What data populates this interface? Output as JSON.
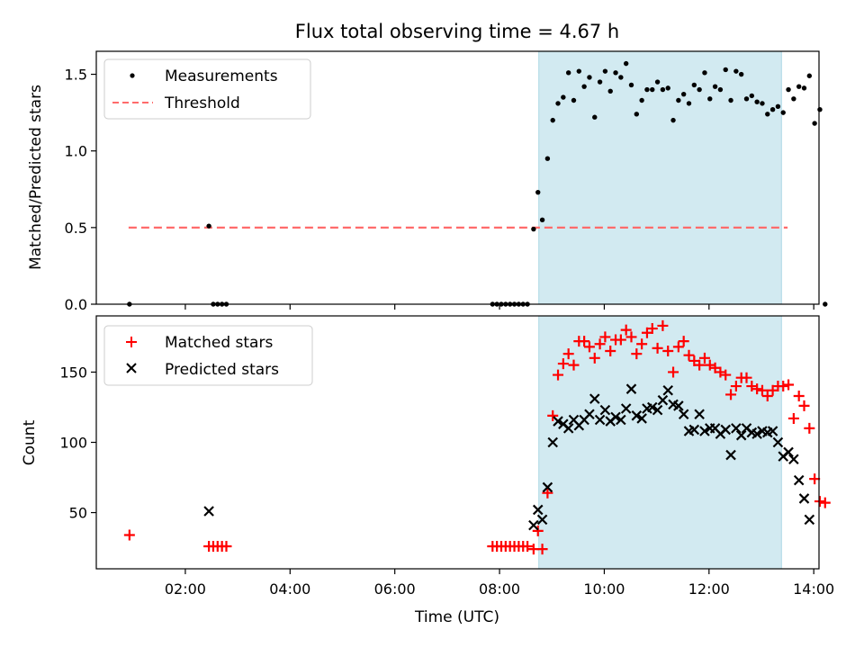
{
  "title": "Flux total observing time = 4.67 h",
  "colors": {
    "observing_band": "#add8e6",
    "threshold": "#ff6b6b",
    "matched": "#ff0000",
    "predicted": "#000000",
    "measurements": "#000000"
  },
  "chart_data": [
    {
      "type": "scatter",
      "ylabel": "Matched/Predicted stars",
      "xlabel": "",
      "x_unit": "hours UTC",
      "xlim": [
        0.3,
        14.1
      ],
      "ylim": [
        0,
        1.65
      ],
      "y_ticks": [
        "0.0",
        "0.5",
        "1.0",
        "1.5"
      ],
      "legend": {
        "position": "top-left",
        "entries": [
          "Measurements",
          "Threshold"
        ]
      },
      "observing_window": [
        "08:45",
        "13:23"
      ],
      "threshold": {
        "value": 0.5,
        "x_range": [
          "00:55",
          "13:30"
        ]
      },
      "series": [
        {
          "name": "Measurements",
          "marker": "dot",
          "points": [
            [
              "00:56",
              0.0
            ],
            [
              "02:27",
              0.51
            ],
            [
              "02:32",
              0.0
            ],
            [
              "02:37",
              0.0
            ],
            [
              "02:42",
              0.0
            ],
            [
              "02:47",
              0.0
            ],
            [
              "07:52",
              0.0
            ],
            [
              "07:57",
              0.0
            ],
            [
              "08:02",
              0.0
            ],
            [
              "08:07",
              0.0
            ],
            [
              "08:12",
              0.0
            ],
            [
              "08:17",
              0.0
            ],
            [
              "08:22",
              0.0
            ],
            [
              "08:27",
              0.0
            ],
            [
              "08:32",
              0.0
            ],
            [
              "08:39",
              0.49
            ],
            [
              "08:44",
              0.73
            ],
            [
              "08:49",
              0.55
            ],
            [
              "08:55",
              0.95
            ],
            [
              "09:01",
              1.2
            ],
            [
              "09:07",
              1.31
            ],
            [
              "09:13",
              1.35
            ],
            [
              "09:19",
              1.51
            ],
            [
              "09:25",
              1.33
            ],
            [
              "09:31",
              1.52
            ],
            [
              "09:37",
              1.42
            ],
            [
              "09:43",
              1.48
            ],
            [
              "09:49",
              1.22
            ],
            [
              "09:55",
              1.45
            ],
            [
              "10:01",
              1.52
            ],
            [
              "10:07",
              1.39
            ],
            [
              "10:13",
              1.51
            ],
            [
              "10:19",
              1.48
            ],
            [
              "10:25",
              1.57
            ],
            [
              "10:31",
              1.43
            ],
            [
              "10:37",
              1.24
            ],
            [
              "10:43",
              1.33
            ],
            [
              "10:49",
              1.4
            ],
            [
              "10:55",
              1.4
            ],
            [
              "11:01",
              1.45
            ],
            [
              "11:07",
              1.4
            ],
            [
              "11:13",
              1.41
            ],
            [
              "11:19",
              1.2
            ],
            [
              "11:25",
              1.33
            ],
            [
              "11:31",
              1.37
            ],
            [
              "11:37",
              1.31
            ],
            [
              "11:43",
              1.43
            ],
            [
              "11:49",
              1.4
            ],
            [
              "11:55",
              1.51
            ],
            [
              "12:01",
              1.34
            ],
            [
              "12:07",
              1.42
            ],
            [
              "12:13",
              1.4
            ],
            [
              "12:19",
              1.53
            ],
            [
              "12:25",
              1.33
            ],
            [
              "12:31",
              1.52
            ],
            [
              "12:37",
              1.5
            ],
            [
              "12:43",
              1.34
            ],
            [
              "12:49",
              1.36
            ],
            [
              "12:55",
              1.32
            ],
            [
              "13:01",
              1.31
            ],
            [
              "13:07",
              1.24
            ],
            [
              "13:13",
              1.27
            ],
            [
              "13:19",
              1.29
            ],
            [
              "13:25",
              1.25
            ],
            [
              "13:31",
              1.4
            ],
            [
              "13:37",
              1.34
            ],
            [
              "13:43",
              1.42
            ],
            [
              "13:49",
              1.41
            ],
            [
              "13:55",
              1.49
            ],
            [
              "14:01",
              1.18
            ],
            [
              "14:07",
              1.27
            ],
            [
              "14:13",
              0.0
            ]
          ]
        }
      ]
    },
    {
      "type": "scatter",
      "ylabel": "Count",
      "xlabel": "Time (UTC)",
      "x_unit": "hours UTC",
      "xlim": [
        0.3,
        14.1
      ],
      "ylim": [
        10,
        190
      ],
      "x_ticks": [
        "02:00",
        "04:00",
        "06:00",
        "08:00",
        "10:00",
        "12:00",
        "14:00"
      ],
      "y_ticks": [
        "50",
        "100",
        "150"
      ],
      "legend": {
        "position": "top-left",
        "entries": [
          "Matched stars",
          "Predicted stars"
        ]
      },
      "observing_window": [
        "08:45",
        "13:23"
      ],
      "series": [
        {
          "name": "Matched stars",
          "marker": "plus",
          "points": [
            [
              "00:56",
              34
            ],
            [
              "02:27",
              26
            ],
            [
              "02:32",
              26
            ],
            [
              "02:37",
              26
            ],
            [
              "02:42",
              26
            ],
            [
              "02:47",
              26
            ],
            [
              "07:52",
              26
            ],
            [
              "07:57",
              26
            ],
            [
              "08:02",
              26
            ],
            [
              "08:07",
              26
            ],
            [
              "08:12",
              26
            ],
            [
              "08:17",
              26
            ],
            [
              "08:22",
              26
            ],
            [
              "08:27",
              26
            ],
            [
              "08:32",
              26
            ],
            [
              "08:39",
              24
            ],
            [
              "08:44",
              37
            ],
            [
              "08:49",
              24
            ],
            [
              "08:55",
              64
            ],
            [
              "09:01",
              119
            ],
            [
              "09:07",
              148
            ],
            [
              "09:13",
              156
            ],
            [
              "09:19",
              163
            ],
            [
              "09:25",
              155
            ],
            [
              "09:31",
              172
            ],
            [
              "09:37",
              172
            ],
            [
              "09:43",
              168
            ],
            [
              "09:49",
              160
            ],
            [
              "09:55",
              170
            ],
            [
              "10:01",
              175
            ],
            [
              "10:07",
              165
            ],
            [
              "10:13",
              173
            ],
            [
              "10:19",
              173
            ],
            [
              "10:25",
              180
            ],
            [
              "10:31",
              175
            ],
            [
              "10:37",
              163
            ],
            [
              "10:43",
              170
            ],
            [
              "10:49",
              178
            ],
            [
              "10:55",
              181
            ],
            [
              "11:01",
              167
            ],
            [
              "11:07",
              183
            ],
            [
              "11:13",
              165
            ],
            [
              "11:19",
              150
            ],
            [
              "11:25",
              168
            ],
            [
              "11:31",
              172
            ],
            [
              "11:37",
              162
            ],
            [
              "11:43",
              158
            ],
            [
              "11:49",
              155
            ],
            [
              "11:55",
              160
            ],
            [
              "12:01",
              155
            ],
            [
              "12:07",
              153
            ],
            [
              "12:13",
              150
            ],
            [
              "12:19",
              148
            ],
            [
              "12:25",
              134
            ],
            [
              "12:31",
              140
            ],
            [
              "12:37",
              146
            ],
            [
              "12:43",
              146
            ],
            [
              "12:49",
              140
            ],
            [
              "12:55",
              138
            ],
            [
              "13:01",
              137
            ],
            [
              "13:07",
              133
            ],
            [
              "13:13",
              137
            ],
            [
              "13:19",
              140
            ],
            [
              "13:25",
              140
            ],
            [
              "13:31",
              141
            ],
            [
              "13:37",
              117
            ],
            [
              "13:43",
              133
            ],
            [
              "13:49",
              126
            ],
            [
              "13:55",
              110
            ],
            [
              "14:01",
              74
            ],
            [
              "14:07",
              58
            ],
            [
              "14:13",
              57
            ]
          ]
        },
        {
          "name": "Predicted stars",
          "marker": "x",
          "points": [
            [
              "02:27",
              51
            ],
            [
              "08:39",
              41
            ],
            [
              "08:44",
              52
            ],
            [
              "08:49",
              45
            ],
            [
              "08:55",
              68
            ],
            [
              "09:01",
              100
            ],
            [
              "09:07",
              115
            ],
            [
              "09:13",
              113
            ],
            [
              "09:19",
              110
            ],
            [
              "09:25",
              116
            ],
            [
              "09:31",
              112
            ],
            [
              "09:37",
              116
            ],
            [
              "09:43",
              120
            ],
            [
              "09:49",
              131
            ],
            [
              "09:55",
              116
            ],
            [
              "10:01",
              123
            ],
            [
              "10:07",
              115
            ],
            [
              "10:13",
              118
            ],
            [
              "10:19",
              116
            ],
            [
              "10:25",
              124
            ],
            [
              "10:31",
              138
            ],
            [
              "10:37",
              119
            ],
            [
              "10:43",
              117
            ],
            [
              "10:49",
              124
            ],
            [
              "10:55",
              125
            ],
            [
              "11:01",
              123
            ],
            [
              "11:07",
              130
            ],
            [
              "11:13",
              137
            ],
            [
              "11:19",
              127
            ],
            [
              "11:25",
              126
            ],
            [
              "11:31",
              120
            ],
            [
              "11:37",
              108
            ],
            [
              "11:43",
              109
            ],
            [
              "11:49",
              120
            ],
            [
              "11:55",
              108
            ],
            [
              "12:01",
              110
            ],
            [
              "12:07",
              110
            ],
            [
              "12:13",
              106
            ],
            [
              "12:19",
              109
            ],
            [
              "12:25",
              91
            ],
            [
              "12:31",
              110
            ],
            [
              "12:37",
              105
            ],
            [
              "12:43",
              110
            ],
            [
              "12:49",
              107
            ],
            [
              "12:55",
              106
            ],
            [
              "13:01",
              108
            ],
            [
              "13:07",
              107
            ],
            [
              "13:13",
              108
            ],
            [
              "13:19",
              100
            ],
            [
              "13:25",
              90
            ],
            [
              "13:31",
              93
            ],
            [
              "13:37",
              88
            ],
            [
              "13:43",
              73
            ],
            [
              "13:49",
              60
            ],
            [
              "13:55",
              45
            ]
          ]
        }
      ]
    }
  ]
}
